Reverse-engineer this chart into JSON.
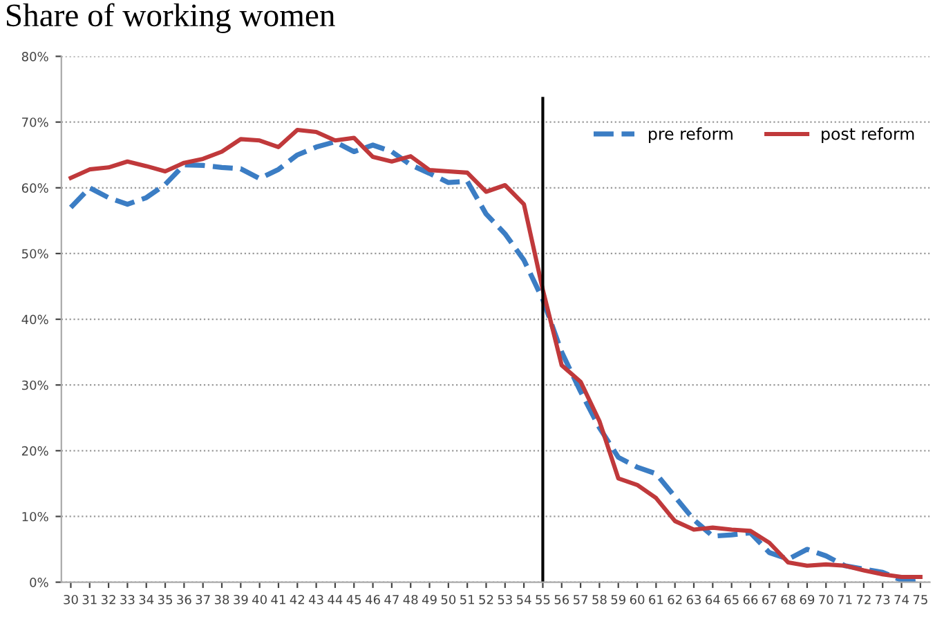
{
  "chart_data": {
    "type": "line",
    "title": "Share of working women",
    "x": [
      30,
      31,
      32,
      33,
      34,
      35,
      36,
      37,
      38,
      39,
      40,
      41,
      42,
      43,
      44,
      45,
      46,
      47,
      48,
      49,
      50,
      51,
      52,
      53,
      54,
      55,
      56,
      57,
      58,
      59,
      60,
      61,
      62,
      63,
      64,
      65,
      66,
      67,
      68,
      69,
      70,
      71,
      72,
      73,
      74,
      75
    ],
    "series": [
      {
        "name": "pre reform",
        "color": "#3b7dc4",
        "line_style": "dashed",
        "values": [
          57,
          60,
          58.5,
          57.5,
          58.5,
          60.5,
          63.5,
          63.4,
          63.1,
          62.9,
          61.4,
          62.8,
          65,
          66.2,
          67,
          65.5,
          66.5,
          65.5,
          63.5,
          62.2,
          60.8,
          61,
          56,
          53,
          49,
          43,
          35,
          29,
          23.5,
          19,
          17.5,
          16.5,
          13,
          9.5,
          7,
          7.2,
          7.5,
          4.5,
          3.5,
          5,
          4,
          2.5,
          2,
          1.5,
          0.3,
          0.5
        ]
      },
      {
        "name": "post reform",
        "color": "#c0393b",
        "line_style": "solid",
        "values": [
          61.5,
          62.8,
          63.1,
          64,
          63.3,
          62.5,
          63.8,
          64.4,
          65.5,
          67.4,
          67.2,
          66.2,
          68.8,
          68.5,
          67.2,
          67.6,
          64.7,
          64,
          64.8,
          62.7,
          62.5,
          62.3,
          59.4,
          60.4,
          57.5,
          44.5,
          33,
          30.5,
          24.5,
          15.8,
          14.8,
          12.8,
          9.3,
          8,
          8.3,
          8,
          7.8,
          6,
          3,
          2.5,
          2.7,
          2.5,
          1.8,
          1.2,
          0.8,
          0.8
        ]
      }
    ],
    "xlim": [
      29.5,
      75.5
    ],
    "xticks": [
      30,
      31,
      32,
      33,
      34,
      35,
      36,
      37,
      38,
      39,
      40,
      41,
      42,
      43,
      44,
      45,
      46,
      47,
      48,
      49,
      50,
      51,
      52,
      53,
      54,
      55,
      56,
      57,
      58,
      59,
      60,
      61,
      62,
      63,
      64,
      65,
      66,
      67,
      68,
      69,
      70,
      71,
      72,
      73,
      74,
      75
    ],
    "ylim": [
      0,
      80
    ],
    "yticks": [
      {
        "value": 0,
        "label": "0%"
      },
      {
        "value": 10,
        "label": "10%"
      },
      {
        "value": 20,
        "label": "20%"
      },
      {
        "value": 30,
        "label": "30%"
      },
      {
        "value": 40,
        "label": "40%"
      },
      {
        "value": 50,
        "label": "50%"
      },
      {
        "value": 60,
        "label": "60%"
      },
      {
        "value": 70,
        "label": "70%"
      },
      {
        "value": 80,
        "label": "80%"
      }
    ],
    "ref_lines": [
      {
        "axis": "x",
        "value": 55,
        "label": null,
        "color": "#000000"
      }
    ],
    "grid": "y",
    "legend": "right",
    "marker": "none"
  }
}
